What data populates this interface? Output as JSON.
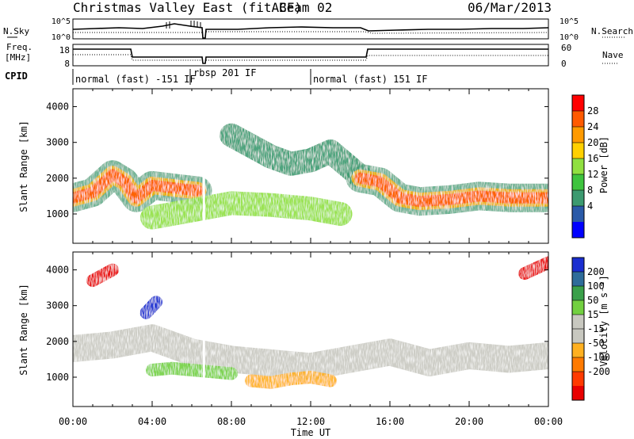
{
  "header": {
    "title": "Christmas Valley East (fitACF)",
    "beam": "Beam 02",
    "date": "06/Mar/2013"
  },
  "small_panels": {
    "nsky_label": "N.Sky",
    "nsearch_label": "N.Search",
    "freq_label_line1": "Freq.",
    "freq_label_line2": "[MHz]",
    "nave_label": "Nave",
    "cpid_label": "CPID",
    "noise_left_ticks": [
      "10^5",
      "10^0"
    ],
    "noise_right_ticks": [
      "10^5",
      "10^0"
    ],
    "freq_left_ticks": [
      "18",
      "8"
    ],
    "freq_right_ticks": [
      "60",
      "0"
    ],
    "cpid_segments": [
      {
        "label": "normal (fast) -151 IF",
        "start_hour": 0.0,
        "end_hour": 6.55
      },
      {
        "label": "rbsp 201 IF",
        "start_hour": 6.55,
        "end_hour": 12.0
      },
      {
        "label": "normal (fast) 151 IF",
        "start_hour": 12.0,
        "end_hour": 24.0
      }
    ]
  },
  "power_colorbar": {
    "label": "Power [dB]",
    "ticks": [
      "28",
      "24",
      "20",
      "16",
      "12",
      "8",
      "4"
    ],
    "colors": [
      "#ff0000",
      "#ff5a00",
      "#ff9a00",
      "#ffd000",
      "#90e040",
      "#3ec43e",
      "#3c9a70",
      "#2a5aa8",
      "#0000ff"
    ]
  },
  "velocity_colorbar": {
    "label": "Velocity [m s⁻¹]",
    "ticks": [
      "200",
      "100",
      "50",
      "15",
      "-15",
      "-50",
      "-100",
      "-200"
    ],
    "colors": [
      "#1a2ed0",
      "#2e6c9a",
      "#3aa04a",
      "#72d040",
      "#c8c8c0",
      "#c8c8c0",
      "#ffb020",
      "#ff7a00",
      "#ff3a00",
      "#e80000"
    ]
  },
  "time_axis": {
    "ticks": [
      "00:00",
      "04:00",
      "08:00",
      "12:00",
      "16:00",
      "20:00",
      "00:00"
    ],
    "label": "Time UT"
  },
  "chart_data": [
    {
      "type": "heatmap",
      "title": "Power",
      "xlabel": "Time UT",
      "ylabel": "Slant Range [km]",
      "xlim": [
        0,
        24
      ],
      "ylim": [
        180,
        4500
      ],
      "yticks": [
        "4000",
        "3000",
        "2000",
        "1000"
      ],
      "colorbar_label": "Power [dB]",
      "colorbar_range": [
        0,
        30
      ],
      "bands": [
        {
          "description": "strong echo band",
          "x": [
            0,
            1,
            2,
            2.6,
            3.2,
            4,
            5.5,
            6.3
          ],
          "y": [
            1450,
            1600,
            2100,
            1900,
            1450,
            1800,
            1700,
            1650
          ],
          "dB": 26
        },
        {
          "description": "broad scatter",
          "x": [
            4,
            6,
            8,
            10,
            12,
            13.5
          ],
          "y": [
            900,
            1100,
            1300,
            1250,
            1150,
            1000
          ],
          "dB": 14
        },
        {
          "description": "upper weak echoes",
          "x": [
            8,
            9,
            10,
            11,
            12,
            13,
            14.5
          ],
          "y": [
            3200,
            2900,
            2600,
            2400,
            2500,
            2750,
            2050
          ],
          "dB": 6
        },
        {
          "description": "strong echo band (afternoon)",
          "x": [
            14.5,
            15.5,
            16.5,
            17.5,
            19,
            20.5,
            22,
            24
          ],
          "y": [
            2000,
            1900,
            1450,
            1350,
            1400,
            1500,
            1450,
            1450
          ],
          "dB": 27
        }
      ]
    },
    {
      "type": "heatmap",
      "title": "Velocity",
      "xlabel": "Time UT",
      "ylabel": "Slant Range [km]",
      "xlim": [
        0,
        24
      ],
      "ylim": [
        180,
        4500
      ],
      "yticks": [
        "4000",
        "3000",
        "2000",
        "1000"
      ],
      "colorbar_label": "Velocity [m s⁻¹]",
      "colorbar_range": [
        -200,
        200
      ],
      "bands": [
        {
          "description": "ground scatter",
          "x": [
            0,
            2,
            4,
            6,
            8,
            10,
            12,
            14,
            16,
            18,
            20,
            22,
            24
          ],
          "y": [
            1800,
            1900,
            2100,
            1700,
            1500,
            1400,
            1300,
            1500,
            1700,
            1400,
            1600,
            1500,
            1600
          ],
          "velocity": 0
        },
        {
          "description": "red patch",
          "x": [
            1,
            2
          ],
          "y": [
            3700,
            4000
          ],
          "velocity": -200
        },
        {
          "description": "blue patch",
          "x": [
            3.7,
            4.2
          ],
          "y": [
            2800,
            3100
          ],
          "velocity": 200
        },
        {
          "description": "green scatter",
          "x": [
            4,
            5,
            6,
            7,
            8
          ],
          "y": [
            1200,
            1250,
            1200,
            1150,
            1100
          ],
          "velocity": 40
        },
        {
          "description": "orange scatter",
          "x": [
            9,
            10,
            11,
            12,
            13
          ],
          "y": [
            900,
            850,
            950,
            1000,
            900
          ],
          "velocity": -60
        },
        {
          "description": "red patch (late)",
          "x": [
            22.8,
            24
          ],
          "y": [
            3900,
            4200
          ],
          "velocity": -180
        }
      ]
    }
  ]
}
